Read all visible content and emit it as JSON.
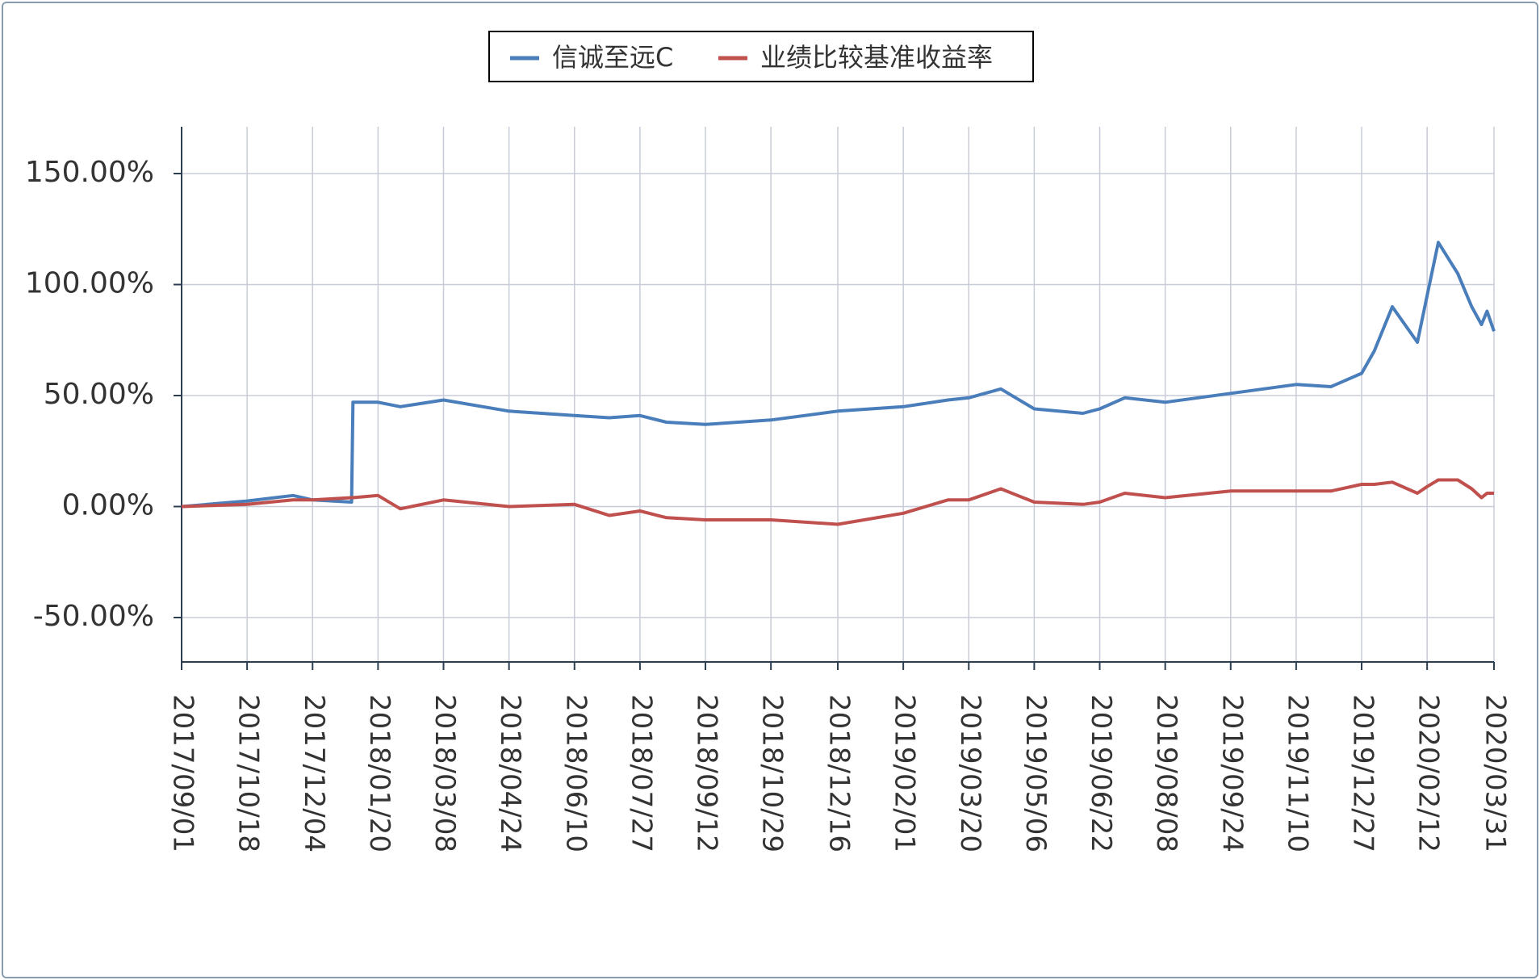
{
  "chart_data": {
    "type": "line",
    "x": [
      "2017/09/01",
      "2017/10/18",
      "2017/11/20",
      "2017/12/04",
      "2018/01/01",
      "2018/01/02",
      "2018/01/20",
      "2018/02/05",
      "2018/03/08",
      "2018/04/24",
      "2018/06/10",
      "2018/07/05",
      "2018/07/27",
      "2018/08/15",
      "2018/09/12",
      "2018/10/29",
      "2018/12/16",
      "2019/02/01",
      "2019/03/05",
      "2019/03/20",
      "2019/04/12",
      "2019/05/06",
      "2019/06/10",
      "2019/06/22",
      "2019/07/10",
      "2019/08/08",
      "2019/09/24",
      "2019/11/10",
      "2019/12/05",
      "2019/12/27",
      "2020/01/05",
      "2020/01/18",
      "2020/02/05",
      "2020/02/12",
      "2020/02/20",
      "2020/03/05",
      "2020/03/15",
      "2020/03/22",
      "2020/03/26",
      "2020/03/31"
    ],
    "series": [
      {
        "name": "信诚至远C",
        "color": "#4a7ebb",
        "values": [
          0,
          2.5,
          5,
          3,
          2,
          47,
          47,
          45,
          48,
          43,
          41,
          40,
          41,
          38,
          37,
          39,
          43,
          45,
          48,
          49,
          53,
          44,
          42,
          44,
          49,
          47,
          51,
          55,
          54,
          60,
          70,
          90,
          74,
          95,
          119,
          105,
          90,
          82,
          88,
          79
        ]
      },
      {
        "name": "业绩比较基准收益率",
        "color": "#c0504d",
        "values": [
          0,
          1,
          3,
          3,
          4,
          4,
          5,
          -1,
          3,
          0,
          1,
          -4,
          -2,
          -5,
          -6,
          -6,
          -8,
          -3,
          3,
          3,
          8,
          2,
          1,
          2,
          6,
          4,
          7,
          7,
          7,
          10,
          10,
          11,
          6,
          9,
          12,
          12,
          8,
          4,
          6,
          6
        ]
      }
    ],
    "xlim": [
      "2017/09/01",
      "2020/03/31"
    ],
    "xticks": [
      "2017/09/01",
      "2017/10/18",
      "2017/12/04",
      "2018/01/20",
      "2018/03/08",
      "2018/04/24",
      "2018/06/10",
      "2018/07/27",
      "2018/09/12",
      "2018/10/29",
      "2018/12/16",
      "2019/02/01",
      "2019/03/20",
      "2019/05/06",
      "2019/06/22",
      "2019/08/08",
      "2019/09/24",
      "2019/11/10",
      "2019/12/27",
      "2020/02/12",
      "2020/03/31"
    ],
    "ylim": [
      -70,
      170
    ],
    "yticks": [
      {
        "value": -50,
        "label": "-50.00%"
      },
      {
        "value": 0,
        "label": "0.00%"
      },
      {
        "value": 50,
        "label": "50.00%"
      },
      {
        "value": 100,
        "label": "100.00%"
      },
      {
        "value": 150,
        "label": "150.00%"
      }
    ],
    "grid": true,
    "legend": "top"
  }
}
